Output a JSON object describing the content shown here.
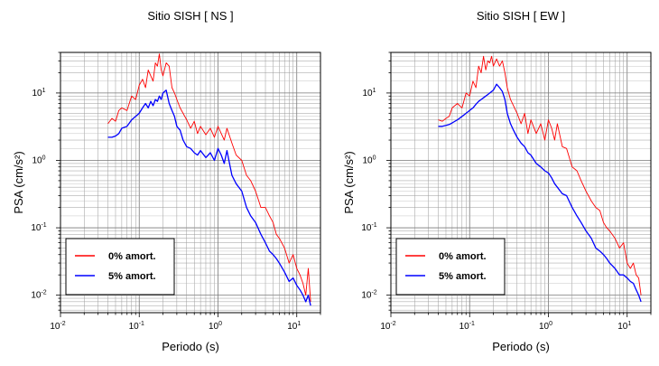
{
  "chart_data": [
    {
      "type": "line",
      "title": "Sitio SISH [ NS ]",
      "xlabel": "Periodo (s)",
      "ylabel": "PSA (cm/s²)",
      "x_scale": "log",
      "y_scale": "log",
      "xlim": [
        0.01,
        20
      ],
      "ylim": [
        0.0055,
        40
      ],
      "grid": true,
      "legend_position": "bottom-left",
      "x_ticks": [
        {
          "base": "10",
          "exp": "-2"
        },
        {
          "base": "10",
          "exp": "-1"
        },
        {
          "base": "10",
          "exp": "0"
        },
        {
          "base": "10",
          "exp": "1"
        }
      ],
      "y_ticks": [
        {
          "base": "10",
          "exp": "-2"
        },
        {
          "base": "10",
          "exp": "-1"
        },
        {
          "base": "10",
          "exp": "0"
        },
        {
          "base": "10",
          "exp": "1"
        }
      ],
      "series": [
        {
          "name": "0% amort.",
          "color": "#ff0000",
          "x": [
            0.04,
            0.045,
            0.05,
            0.055,
            0.06,
            0.07,
            0.08,
            0.09,
            0.1,
            0.11,
            0.12,
            0.13,
            0.14,
            0.15,
            0.16,
            0.17,
            0.18,
            0.19,
            0.2,
            0.22,
            0.24,
            0.26,
            0.28,
            0.3,
            0.33,
            0.36,
            0.4,
            0.45,
            0.5,
            0.55,
            0.6,
            0.7,
            0.8,
            0.9,
            1.0,
            1.1,
            1.2,
            1.3,
            1.5,
            1.7,
            2.0,
            2.3,
            2.6,
            3.0,
            3.5,
            4.0,
            4.5,
            5.0,
            5.5,
            6.0,
            7.0,
            8.0,
            9.0,
            10.0,
            11.0,
            12.0,
            13.0,
            14.0,
            15.0
          ],
          "y": [
            3.5,
            4.2,
            3.8,
            5.5,
            6.0,
            5.5,
            9.0,
            8.0,
            13.0,
            16.0,
            12.0,
            22.0,
            18.0,
            15.0,
            28.0,
            25.0,
            38.0,
            22.0,
            18.0,
            28.0,
            25.0,
            12.0,
            10.0,
            8.0,
            6.0,
            5.0,
            4.0,
            3.0,
            3.8,
            2.5,
            3.2,
            2.4,
            3.0,
            2.2,
            3.2,
            2.5,
            2.0,
            3.0,
            1.8,
            1.2,
            1.0,
            0.6,
            0.5,
            0.35,
            0.2,
            0.2,
            0.15,
            0.12,
            0.08,
            0.07,
            0.05,
            0.03,
            0.04,
            0.025,
            0.02,
            0.015,
            0.01,
            0.025,
            0.008
          ]
        },
        {
          "name": "5% amort.",
          "color": "#0000ff",
          "x": [
            0.04,
            0.045,
            0.05,
            0.055,
            0.06,
            0.07,
            0.08,
            0.09,
            0.1,
            0.11,
            0.12,
            0.13,
            0.14,
            0.15,
            0.16,
            0.17,
            0.18,
            0.19,
            0.2,
            0.22,
            0.24,
            0.26,
            0.28,
            0.3,
            0.33,
            0.36,
            0.4,
            0.45,
            0.5,
            0.55,
            0.6,
            0.7,
            0.8,
            0.9,
            1.0,
            1.1,
            1.2,
            1.3,
            1.5,
            1.7,
            2.0,
            2.3,
            2.6,
            3.0,
            3.5,
            4.0,
            4.5,
            5.0,
            5.5,
            6.0,
            7.0,
            8.0,
            9.0,
            10.0,
            11.0,
            12.0,
            13.0,
            14.0,
            15.0
          ],
          "y": [
            2.2,
            2.2,
            2.3,
            2.5,
            3.0,
            3.2,
            4.0,
            4.5,
            5.0,
            6.0,
            7.0,
            6.0,
            7.5,
            6.5,
            8.0,
            7.5,
            9.0,
            8.0,
            10.0,
            11.0,
            7.0,
            5.5,
            4.5,
            3.2,
            2.8,
            2.0,
            1.6,
            1.5,
            1.3,
            1.2,
            1.4,
            1.1,
            1.3,
            1.0,
            1.5,
            1.2,
            0.9,
            1.4,
            0.6,
            0.45,
            0.35,
            0.2,
            0.15,
            0.12,
            0.08,
            0.06,
            0.045,
            0.04,
            0.035,
            0.03,
            0.022,
            0.016,
            0.018,
            0.014,
            0.012,
            0.01,
            0.008,
            0.01,
            0.007
          ]
        }
      ]
    },
    {
      "type": "line",
      "title": "Sitio SISH [ EW ]",
      "xlabel": "Periodo (s)",
      "ylabel": "PSA (cm/s²)",
      "x_scale": "log",
      "y_scale": "log",
      "xlim": [
        0.01,
        20
      ],
      "ylim": [
        0.0055,
        40
      ],
      "grid": true,
      "legend_position": "bottom-left",
      "x_ticks": [
        {
          "base": "10",
          "exp": "-2"
        },
        {
          "base": "10",
          "exp": "-1"
        },
        {
          "base": "10",
          "exp": "0"
        },
        {
          "base": "10",
          "exp": "1"
        }
      ],
      "y_ticks": [
        {
          "base": "10",
          "exp": "-2"
        },
        {
          "base": "10",
          "exp": "-1"
        },
        {
          "base": "10",
          "exp": "0"
        },
        {
          "base": "10",
          "exp": "1"
        }
      ],
      "series": [
        {
          "name": "0% amort.",
          "color": "#ff0000",
          "x": [
            0.04,
            0.045,
            0.05,
            0.055,
            0.06,
            0.07,
            0.08,
            0.09,
            0.1,
            0.11,
            0.12,
            0.13,
            0.14,
            0.15,
            0.16,
            0.17,
            0.18,
            0.19,
            0.2,
            0.22,
            0.24,
            0.26,
            0.28,
            0.3,
            0.33,
            0.36,
            0.4,
            0.45,
            0.5,
            0.55,
            0.6,
            0.7,
            0.8,
            0.9,
            1.0,
            1.1,
            1.2,
            1.3,
            1.5,
            1.7,
            2.0,
            2.3,
            2.6,
            3.0,
            3.5,
            4.0,
            4.5,
            5.0,
            5.5,
            6.0,
            7.0,
            8.0,
            9.0,
            10.0,
            11.0,
            12.0,
            13.0,
            14.0,
            15.0
          ],
          "y": [
            4.0,
            3.8,
            4.2,
            4.5,
            6.0,
            7.0,
            6.0,
            10.0,
            9.0,
            15.0,
            12.0,
            25.0,
            20.0,
            35.0,
            22.0,
            30.0,
            28.0,
            35.0,
            25.0,
            32.0,
            25.0,
            30.0,
            20.0,
            12.0,
            8.0,
            6.5,
            5.0,
            3.5,
            5.0,
            2.5,
            4.0,
            2.5,
            3.5,
            2.0,
            4.0,
            3.0,
            2.0,
            3.5,
            1.6,
            1.5,
            0.8,
            0.7,
            0.5,
            0.35,
            0.25,
            0.2,
            0.18,
            0.12,
            0.1,
            0.09,
            0.07,
            0.05,
            0.06,
            0.03,
            0.025,
            0.03,
            0.02,
            0.018,
            0.01
          ]
        },
        {
          "name": "5% amort.",
          "color": "#0000ff",
          "x": [
            0.04,
            0.045,
            0.05,
            0.055,
            0.06,
            0.07,
            0.08,
            0.09,
            0.1,
            0.11,
            0.12,
            0.13,
            0.14,
            0.15,
            0.16,
            0.17,
            0.18,
            0.19,
            0.2,
            0.22,
            0.24,
            0.26,
            0.28,
            0.3,
            0.33,
            0.36,
            0.4,
            0.45,
            0.5,
            0.55,
            0.6,
            0.7,
            0.8,
            0.9,
            1.0,
            1.1,
            1.2,
            1.3,
            1.5,
            1.7,
            2.0,
            2.3,
            2.6,
            3.0,
            3.5,
            4.0,
            4.5,
            5.0,
            5.5,
            6.0,
            7.0,
            8.0,
            9.0,
            10.0,
            11.0,
            12.0,
            13.0,
            14.0,
            15.0
          ],
          "y": [
            3.2,
            3.2,
            3.3,
            3.4,
            3.6,
            4.0,
            4.5,
            5.0,
            5.5,
            6.0,
            6.8,
            7.5,
            8.0,
            8.5,
            9.0,
            9.5,
            10.0,
            10.5,
            11.0,
            13.5,
            12.0,
            10.5,
            8.0,
            5.0,
            3.5,
            2.8,
            2.2,
            1.8,
            1.6,
            1.3,
            1.2,
            0.9,
            0.8,
            0.7,
            0.65,
            0.55,
            0.45,
            0.4,
            0.32,
            0.3,
            0.2,
            0.15,
            0.12,
            0.09,
            0.07,
            0.05,
            0.045,
            0.04,
            0.035,
            0.03,
            0.025,
            0.02,
            0.02,
            0.018,
            0.016,
            0.015,
            0.012,
            0.01,
            0.008
          ]
        }
      ]
    }
  ]
}
